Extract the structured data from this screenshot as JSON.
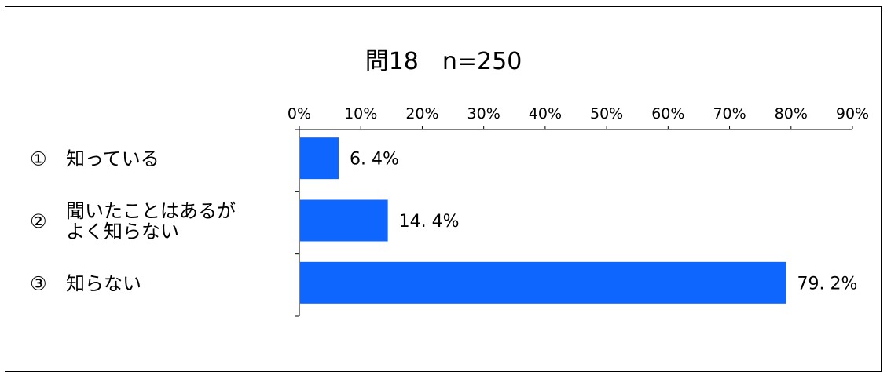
{
  "chart_data": {
    "type": "bar",
    "orientation": "horizontal",
    "title": "問18　n=250",
    "categories": [
      {
        "number": "①",
        "lines": [
          "知っている"
        ]
      },
      {
        "number": "②",
        "lines": [
          "聞いたことはあるが",
          "よく知らない"
        ]
      },
      {
        "number": "③",
        "lines": [
          "知らない"
        ]
      }
    ],
    "values": [
      6.4,
      14.4,
      79.2
    ],
    "value_labels": [
      "6. 4%",
      "14. 4%",
      "79. 2%"
    ],
    "xlim": [
      0,
      90
    ],
    "xticks": [
      0,
      10,
      20,
      30,
      40,
      50,
      60,
      70,
      80,
      90
    ],
    "xtick_labels": [
      "0%",
      "10%",
      "20%",
      "30%",
      "40%",
      "50%",
      "60%",
      "70%",
      "80%",
      "90%"
    ],
    "x_axis_position": "top",
    "grid": false,
    "legend": "none",
    "bar_color": "#0F66FF"
  }
}
